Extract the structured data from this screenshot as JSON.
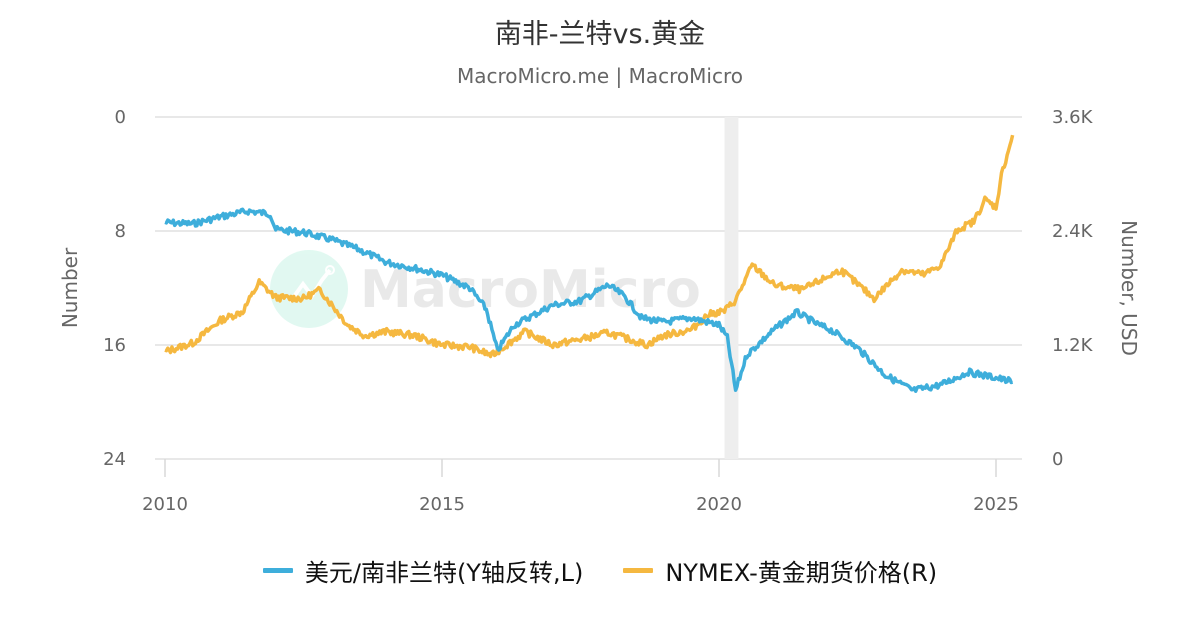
{
  "header": {
    "title": "南非-兰特vs.黄金",
    "subtitle": "MacroMicro.me | MacroMicro"
  },
  "watermark": "MacroMicro",
  "colors": {
    "usd_zar": "#3eaedb",
    "gold": "#f5b840",
    "gridline": "#e0e0e0",
    "recession_band": "#eeeeee"
  },
  "legend": [
    {
      "label": "美元/南非兰特(Y轴反转,L)",
      "color": "#3eaedb"
    },
    {
      "label": "NYMEX-黄金期货价格(R)",
      "color": "#f5b840"
    }
  ],
  "chart_data": {
    "type": "line",
    "title": "南非-兰特vs.黄金",
    "subtitle": "MacroMicro.me | MacroMicro",
    "xlabel": "",
    "x_ticks": [
      "2010",
      "2015",
      "2020",
      "2025"
    ],
    "x_range": [
      2009.97,
      2025.5
    ],
    "left_axis": {
      "label": "Number",
      "ticks": [
        "0",
        "8",
        "16",
        "24"
      ],
      "range": [
        0,
        24
      ],
      "reversed": true
    },
    "right_axis": {
      "label": "Number, USD",
      "ticks": [
        "0",
        "1.2K",
        "2.4K",
        "3.6K"
      ],
      "range": [
        0,
        3600
      ]
    },
    "grid": true,
    "legend_position": "bottom",
    "shaded_regions": [
      {
        "from": 2020.1,
        "to": 2020.35,
        "label": "recession"
      }
    ],
    "series": [
      {
        "name": "美元/南非兰特(Y轴反转,L)",
        "axis": "left",
        "color": "#3eaedb",
        "x": [
          2010.0,
          2010.5,
          2011.0,
          2011.5,
          2011.9,
          2012.0,
          2012.5,
          2013.0,
          2013.5,
          2014.0,
          2014.5,
          2015.0,
          2015.5,
          2015.8,
          2016.0,
          2016.3,
          2016.6,
          2017.0,
          2017.5,
          2018.0,
          2018.3,
          2018.6,
          2019.0,
          2019.5,
          2020.0,
          2020.15,
          2020.3,
          2020.5,
          2021.0,
          2021.4,
          2021.8,
          2022.0,
          2022.5,
          2023.0,
          2023.5,
          2024.0,
          2024.5,
          2025.0,
          2025.3
        ],
        "values": [
          7.4,
          7.5,
          7.0,
          6.6,
          6.8,
          7.9,
          8.1,
          8.6,
          9.3,
          10.2,
          10.6,
          11.1,
          12.0,
          13.5,
          16.4,
          14.6,
          14.0,
          13.2,
          12.9,
          11.8,
          12.6,
          14.1,
          14.4,
          14.1,
          14.6,
          15.5,
          19.2,
          16.7,
          14.9,
          13.7,
          14.6,
          14.9,
          16.2,
          18.1,
          19.2,
          18.8,
          17.9,
          18.3,
          18.6
        ]
      },
      {
        "name": "NYMEX-黄金期货价格(R)",
        "axis": "right",
        "color": "#f5b840",
        "x": [
          2010.0,
          2010.5,
          2011.0,
          2011.4,
          2011.7,
          2012.0,
          2012.5,
          2012.8,
          2013.3,
          2013.6,
          2014.0,
          2014.5,
          2015.0,
          2015.5,
          2015.9,
          2016.5,
          2017.0,
          2017.5,
          2018.0,
          2018.7,
          2019.0,
          2019.5,
          2019.8,
          2020.1,
          2020.3,
          2020.6,
          2021.0,
          2021.5,
          2022.2,
          2022.8,
          2023.3,
          2023.7,
          2024.0,
          2024.3,
          2024.6,
          2024.8,
          2025.0,
          2025.1,
          2025.3
        ],
        "values": [
          1130,
          1220,
          1460,
          1550,
          1860,
          1700,
          1690,
          1780,
          1410,
          1300,
          1340,
          1300,
          1200,
          1180,
          1090,
          1340,
          1200,
          1260,
          1330,
          1200,
          1300,
          1360,
          1520,
          1560,
          1670,
          2040,
          1830,
          1780,
          1990,
          1690,
          1990,
          1940,
          2040,
          2410,
          2500,
          2730,
          2650,
          2990,
          3410
        ]
      }
    ]
  }
}
